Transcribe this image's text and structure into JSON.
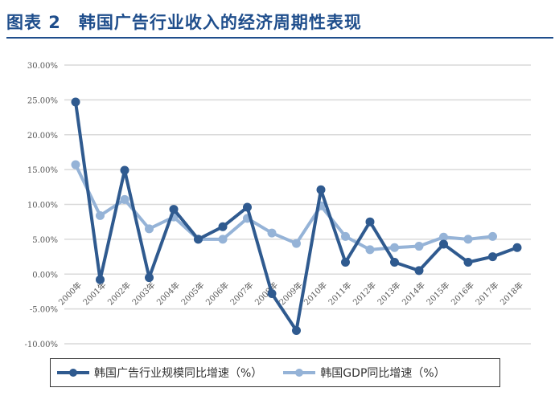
{
  "header": {
    "title": "图表 2　韩国广告行业收入的经济周期性表现"
  },
  "chart_data": {
    "type": "line",
    "title": "",
    "xlabel": "",
    "ylabel": "",
    "ylim": [
      -10,
      30
    ],
    "yticks": [
      -10,
      -5,
      0,
      5,
      10,
      15,
      20,
      25,
      30
    ],
    "ytick_labels": [
      "-10.00%",
      "-5.00%",
      "0.00%",
      "5.00%",
      "10.00%",
      "15.00%",
      "20.00%",
      "25.00%",
      "30.00%"
    ],
    "grid": true,
    "legend_position": "bottom",
    "categories": [
      "2000年",
      "2001年",
      "2002年",
      "2003年",
      "2004年",
      "2005年",
      "2006年",
      "2007年",
      "2008年",
      "2009年",
      "2010年",
      "2011年",
      "2012年",
      "2013年",
      "2014年",
      "2015年",
      "2016年",
      "2017年",
      "2018年"
    ],
    "series": [
      {
        "name": "韩国广告行业规模同比增速（%）",
        "color": "#2f5a8f",
        "values": [
          24.7,
          -0.8,
          14.9,
          -0.5,
          9.3,
          5.0,
          6.8,
          9.6,
          -2.8,
          -8.1,
          12.1,
          1.7,
          7.5,
          1.7,
          0.5,
          4.3,
          1.7,
          2.5,
          3.8
        ]
      },
      {
        "name": "韩国GDP同比增速（%）",
        "color": "#95b3d7",
        "values": [
          15.7,
          8.4,
          10.7,
          6.5,
          8.2,
          5.0,
          5.0,
          8.0,
          5.9,
          4.4,
          9.8,
          5.4,
          3.5,
          3.8,
          4.0,
          5.3,
          5.0,
          5.4,
          null
        ]
      }
    ]
  }
}
